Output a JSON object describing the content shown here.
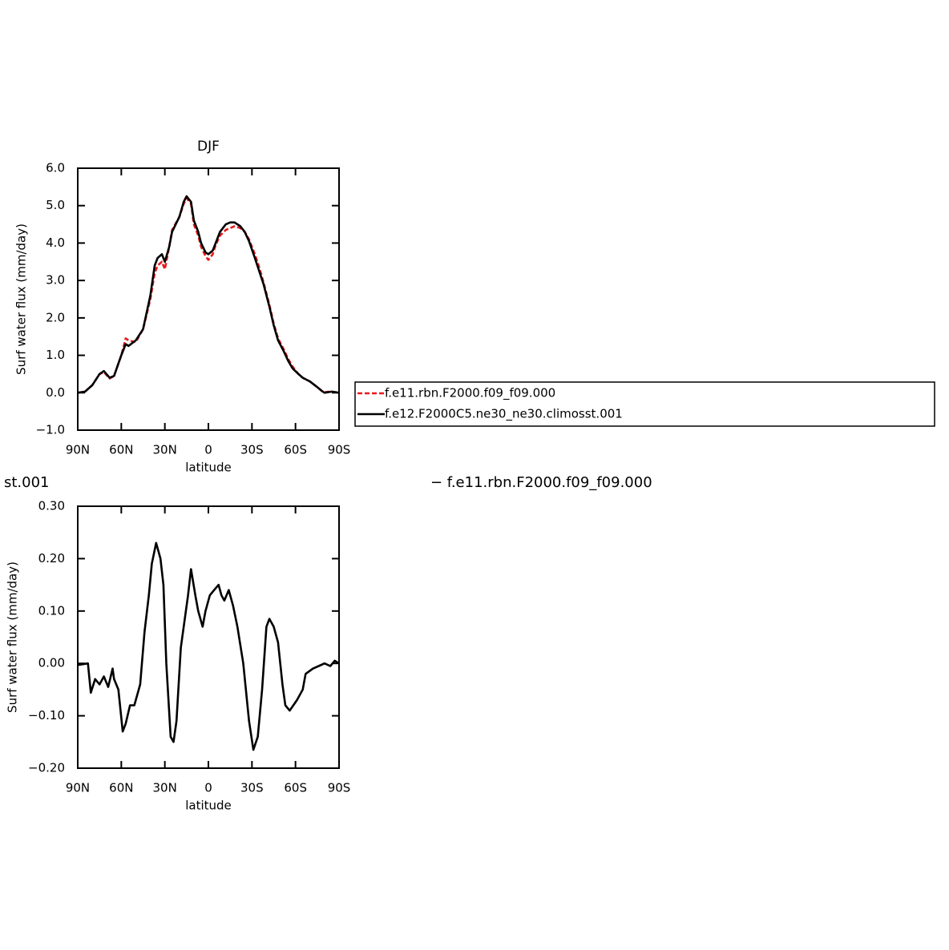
{
  "chart_data": [
    {
      "type": "line",
      "title": "DJF",
      "x_label": "latitude",
      "y_label": "Surf water flux (mm/day)",
      "x": [
        90,
        85,
        80,
        75,
        72,
        68,
        65,
        60,
        57,
        55,
        50,
        45,
        40,
        37,
        35,
        32,
        30,
        27,
        25,
        20,
        17,
        15,
        12,
        10,
        7,
        5,
        2,
        0,
        -3,
        -5,
        -8,
        -12,
        -15,
        -18,
        -22,
        -25,
        -28,
        -32,
        -35,
        -38,
        -42,
        -45,
        -48,
        -52,
        -55,
        -58,
        -62,
        -65,
        -70,
        -75,
        -78,
        -80,
        -85,
        -90
      ],
      "series": [
        {
          "name": "f.e11.rbn.F2000.f09_f09.000",
          "color": "#e8191c",
          "dash": "dashed",
          "values": [
            0.0,
            0.03,
            0.2,
            0.5,
            0.55,
            0.38,
            0.45,
            1.0,
            1.45,
            1.4,
            1.35,
            1.7,
            2.5,
            3.2,
            3.4,
            3.5,
            3.3,
            3.9,
            4.35,
            4.7,
            5.05,
            5.2,
            5.05,
            4.5,
            4.2,
            3.9,
            3.65,
            3.55,
            3.7,
            3.95,
            4.2,
            4.35,
            4.4,
            4.45,
            4.4,
            4.3,
            4.1,
            3.7,
            3.35,
            2.95,
            2.35,
            1.85,
            1.45,
            1.15,
            0.9,
            0.7,
            0.5,
            0.4,
            0.3,
            0.15,
            0.05,
            0.02,
            0.03,
            0.0
          ]
        },
        {
          "name": "f.e12.F2000C5.ne30_ne30.climosst.001",
          "color": "#000000",
          "dash": "solid",
          "values": [
            0.0,
            0.03,
            0.2,
            0.5,
            0.58,
            0.4,
            0.45,
            1.0,
            1.3,
            1.25,
            1.4,
            1.7,
            2.6,
            3.4,
            3.6,
            3.7,
            3.5,
            3.9,
            4.3,
            4.7,
            5.1,
            5.25,
            5.1,
            4.6,
            4.3,
            4.0,
            3.75,
            3.7,
            3.8,
            4.0,
            4.3,
            4.5,
            4.55,
            4.55,
            4.45,
            4.3,
            4.05,
            3.6,
            3.25,
            2.9,
            2.3,
            1.8,
            1.4,
            1.1,
            0.85,
            0.65,
            0.5,
            0.4,
            0.3,
            0.15,
            0.05,
            0.0,
            0.03,
            0.0
          ]
        }
      ],
      "xlim": [
        90,
        -90
      ],
      "xticks": [
        {
          "value": 90,
          "label": "90N"
        },
        {
          "value": 60,
          "label": "60N"
        },
        {
          "value": 30,
          "label": "30N"
        },
        0,
        {
          "value": -30,
          "label": "30S"
        },
        {
          "value": -60,
          "label": "60S"
        },
        {
          "value": -90,
          "label": "90S"
        }
      ],
      "ylim": [
        -1,
        6
      ],
      "yticks": [
        {
          "value": -1,
          "label": "−1.0"
        },
        {
          "value": 0,
          "label": "0.0"
        },
        {
          "value": 1,
          "label": "1.0"
        },
        {
          "value": 2,
          "label": "2.0"
        },
        {
          "value": 3,
          "label": "3.0"
        },
        {
          "value": 4,
          "label": "4.0"
        },
        {
          "value": 5,
          "label": "5.0"
        },
        {
          "value": 6,
          "label": "6.0"
        }
      ],
      "legend": "right"
    },
    {
      "type": "line",
      "title_left": "st.001",
      "title_right": "− f.e11.rbn.F2000.f09_f09.000",
      "x_label": "latitude",
      "y_label": "Surf water flux (mm/day)",
      "x": [
        90,
        83,
        81,
        78,
        75,
        72,
        69,
        66,
        65,
        62,
        59,
        57,
        54,
        51,
        47,
        44,
        41,
        39,
        36,
        33,
        31,
        29,
        26,
        24,
        22,
        19,
        17,
        14,
        12,
        9,
        7,
        4,
        2,
        -1,
        -4,
        -7,
        -9,
        -11,
        -14,
        -17,
        -20,
        -24,
        -28,
        -31,
        -34,
        -37,
        -40,
        -42,
        -45,
        -48,
        -51,
        -53,
        -56,
        -61,
        -65,
        -67,
        -72,
        -76,
        -80,
        -84,
        -87,
        -90
      ],
      "values": [
        -0.003,
        0.0,
        -0.056,
        -0.03,
        -0.04,
        -0.025,
        -0.045,
        -0.01,
        -0.03,
        -0.05,
        -0.13,
        -0.115,
        -0.08,
        -0.08,
        -0.04,
        0.06,
        0.13,
        0.19,
        0.23,
        0.2,
        0.15,
        0.0,
        -0.14,
        -0.15,
        -0.11,
        0.03,
        0.07,
        0.13,
        0.18,
        0.13,
        0.1,
        0.07,
        0.1,
        0.13,
        0.14,
        0.15,
        0.13,
        0.12,
        0.14,
        0.11,
        0.07,
        0.0,
        -0.11,
        -0.165,
        -0.14,
        -0.05,
        0.07,
        0.085,
        0.07,
        0.04,
        -0.04,
        -0.08,
        -0.09,
        -0.07,
        -0.05,
        -0.02,
        -0.01,
        -0.005,
        0.0,
        -0.005,
        0.005,
        0.0
      ],
      "color": "#000000",
      "xlim": [
        90,
        -90
      ],
      "xticks": [
        {
          "value": 90,
          "label": "90N"
        },
        {
          "value": 60,
          "label": "60N"
        },
        {
          "value": 30,
          "label": "30N"
        },
        0,
        {
          "value": -30,
          "label": "30S"
        },
        {
          "value": -60,
          "label": "60S"
        },
        {
          "value": -90,
          "label": "90S"
        }
      ],
      "ylim": [
        -0.2,
        0.3
      ],
      "yticks": [
        {
          "value": -0.2,
          "label": "−0.20"
        },
        {
          "value": -0.1,
          "label": "−0.10"
        },
        {
          "value": 0,
          "label": "0.00"
        },
        {
          "value": 0.1,
          "label": "0.10"
        },
        {
          "value": 0.2,
          "label": "0.20"
        },
        {
          "value": 0.3,
          "label": "0.30"
        }
      ]
    }
  ]
}
